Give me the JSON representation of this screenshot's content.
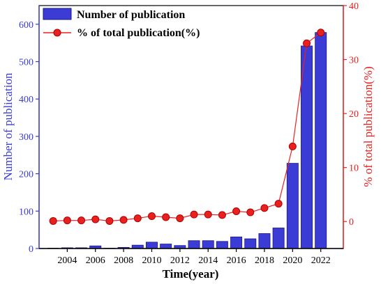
{
  "chart_data": {
    "type": "bar+line",
    "xlabel": "Time(year)",
    "ylabel_left": "Number of publication",
    "ylabel_right": "% of total publication(%)",
    "x": [
      2003,
      2004,
      2005,
      2006,
      2007,
      2008,
      2009,
      2010,
      2011,
      2012,
      2013,
      2014,
      2015,
      2016,
      2017,
      2018,
      2019,
      2020,
      2021,
      2022
    ],
    "x_ticks": [
      "2004",
      "2006",
      "2008",
      "2010",
      "2012",
      "2014",
      "2016",
      "2018",
      "2020",
      "2022"
    ],
    "xlim": [
      2002,
      2023.6
    ],
    "series": [
      {
        "name": "Number of publication",
        "type": "bar",
        "axis": "left",
        "color": "#3b3bd6",
        "values": [
          1,
          2,
          2,
          7,
          1,
          3,
          9,
          17,
          12,
          8,
          21,
          21,
          19,
          31,
          26,
          40,
          55,
          228,
          542,
          578
        ]
      },
      {
        "name": "% of total publication(%)",
        "type": "line",
        "axis": "right",
        "color": "#e82020",
        "values": [
          0.1,
          0.2,
          0.2,
          0.4,
          0.1,
          0.3,
          0.6,
          1.0,
          0.8,
          0.6,
          1.3,
          1.3,
          1.2,
          1.9,
          1.7,
          2.5,
          3.3,
          13.9,
          33.0,
          35.0
        ]
      }
    ],
    "ylim_left": [
      0,
      650
    ],
    "yticks_left": [
      0,
      100,
      200,
      300,
      400,
      500,
      600
    ],
    "ylim_right": [
      -5,
      40
    ],
    "yticks_right": [
      0,
      10,
      20,
      30,
      40
    ],
    "legend_position": "top-left",
    "grid": false
  }
}
